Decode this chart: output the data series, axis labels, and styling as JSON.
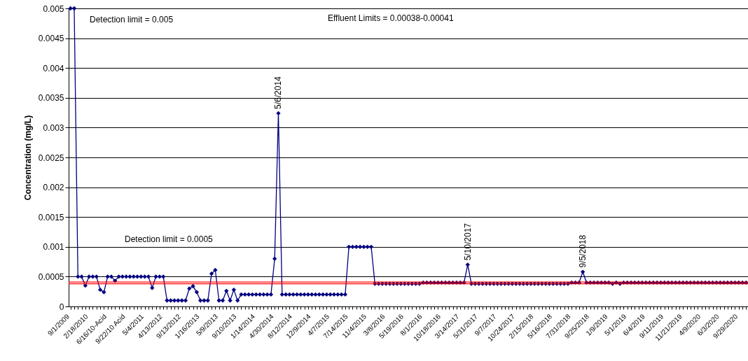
{
  "chart_data": {
    "type": "line",
    "ylabel": "Concentration (mg/L)",
    "categories": [
      "9/1/2009",
      null,
      null,
      null,
      null,
      "2/18/2010",
      null,
      null,
      null,
      null,
      "6/16/10-Acid",
      null,
      null,
      null,
      null,
      "9/22/10 Acid",
      null,
      null,
      null,
      null,
      "5/4/2011",
      null,
      null,
      null,
      null,
      "4/13/2012",
      null,
      null,
      null,
      null,
      "9/13/2012",
      null,
      null,
      null,
      null,
      "1/16/2013",
      null,
      null,
      null,
      null,
      "5/9/2013",
      null,
      null,
      null,
      null,
      "9/10/2013",
      null,
      null,
      null,
      null,
      "1/14/2014",
      null,
      null,
      null,
      null,
      "4/30/2014",
      null,
      null,
      null,
      null,
      "8/12/2014",
      null,
      null,
      null,
      null,
      "12/9/2014",
      null,
      null,
      null,
      null,
      "4/7/2015",
      null,
      null,
      null,
      null,
      "7/14/2015",
      null,
      null,
      null,
      null,
      "11/4/2015",
      null,
      null,
      null,
      null,
      "3/8/2016",
      null,
      null,
      null,
      null,
      "5/19/2016",
      null,
      null,
      null,
      null,
      "8/1/2016",
      null,
      null,
      null,
      null,
      "10/18/2016",
      null,
      null,
      null,
      null,
      "3/14/2017",
      null,
      null,
      null,
      null,
      "5/31/2017",
      null,
      null,
      null,
      null,
      "9/7/2017",
      null,
      null,
      null,
      null,
      "10/24/2017",
      null,
      null,
      null,
      null,
      "2/15/2018",
      null,
      null,
      null,
      null,
      "5/16/2018",
      null,
      null,
      null,
      null,
      "7/31/2018",
      null,
      null,
      null,
      null,
      "9/25/2018",
      null,
      null,
      null,
      null,
      "1/9/2019",
      null,
      null,
      null,
      null,
      "5/1/2019",
      null,
      null,
      null,
      null,
      "6/4/2019",
      null,
      null,
      null,
      null,
      "9/11/2019",
      null,
      null,
      null,
      null,
      "11/21/2019",
      null,
      null,
      null,
      null,
      "4/9/2020",
      null,
      null,
      null,
      null,
      "6/3/2020",
      null,
      null,
      null,
      null,
      "9/29/2020",
      null,
      null
    ],
    "series": [
      {
        "color": "#000080",
        "values": [
          0.005,
          0.005,
          0.0005,
          0.0005,
          0.00035,
          0.0005,
          0.0005,
          0.0005,
          0.00028,
          0.00024,
          0.0005,
          0.0005,
          0.00043,
          0.0005,
          0.0005,
          0.0005,
          0.0005,
          0.0005,
          0.0005,
          0.0005,
          0.0005,
          0.0005,
          0.00031,
          0.0005,
          0.0005,
          0.0005,
          0.0001,
          0.0001,
          0.0001,
          0.0001,
          0.0001,
          0.0001,
          0.0003,
          0.00034,
          0.00024,
          0.0001,
          0.0001,
          0.0001,
          0.00055,
          0.00061,
          0.0001,
          0.0001,
          0.00026,
          0.0001,
          0.00028,
          0.0001,
          0.0002,
          0.0002,
          0.0002,
          0.0002,
          0.0002,
          0.0002,
          0.0002,
          0.0002,
          0.0002,
          0.0008,
          0.00324,
          0.0002,
          0.0002,
          0.0002,
          0.0002,
          0.0002,
          0.0002,
          0.0002,
          0.0002,
          0.0002,
          0.0002,
          0.0002,
          0.0002,
          0.0002,
          0.0002,
          0.0002,
          0.0002,
          0.0002,
          0.0002,
          0.001,
          0.001,
          0.001,
          0.001,
          0.001,
          0.001,
          0.001,
          0.00038,
          0.00038,
          0.00038,
          0.00038,
          0.00038,
          0.00038,
          0.00038,
          0.00038,
          0.00038,
          0.00038,
          0.00038,
          0.00038,
          0.00038,
          0.0004,
          0.0004,
          0.0004,
          0.0004,
          0.0004,
          0.0004,
          0.0004,
          0.0004,
          0.0004,
          0.0004,
          0.0004,
          0.0004,
          0.0007,
          0.00038,
          0.00038,
          0.00038,
          0.00038,
          0.00038,
          0.00038,
          0.00038,
          0.00038,
          0.00038,
          0.00038,
          0.00038,
          0.00038,
          0.00038,
          0.00038,
          0.00038,
          0.00038,
          0.00038,
          0.00038,
          0.00038,
          0.00038,
          0.00038,
          0.00038,
          0.00038,
          0.00038,
          0.00038,
          0.00038,
          0.00038,
          0.0004,
          0.0004,
          0.0004,
          0.00058,
          0.0004,
          0.0004,
          0.0004,
          0.0004,
          0.0004,
          0.0004,
          0.0004,
          0.00038,
          0.0004,
          0.00038,
          0.0004,
          0.0004,
          0.0004,
          0.0004,
          0.0004,
          0.0004,
          0.0004,
          0.0004,
          0.0004,
          0.0004,
          0.0004,
          0.0004,
          0.0004,
          0.0004,
          0.0004,
          0.0004,
          0.0004,
          0.0004,
          0.0004,
          0.0004,
          0.0004,
          0.0004,
          0.0004,
          0.0004,
          0.0004,
          0.0004,
          0.0004,
          0.0004,
          0.0004,
          0.0004,
          0.0004,
          0.0004,
          0.0004,
          0.0004
        ]
      }
    ],
    "ylim": [
      0,
      0.005
    ],
    "yticks": [
      0,
      0.0005,
      0.001,
      0.0015,
      0.002,
      0.0025,
      0.003,
      0.0035,
      0.004,
      0.0045,
      0.005
    ],
    "grid": "y",
    "marker": "diamond",
    "line_style": "solid",
    "ref_lines": [
      {
        "axis": "y",
        "value": 0.00038,
        "color": "#ff0000"
      },
      {
        "axis": "y",
        "value": 0.00041,
        "color": "#ff0000"
      }
    ],
    "annotations": [
      "Detection limit = 0.005",
      "Effluent Limits = 0.00038-0.00041",
      "Detection limit = 0.0005",
      {
        "text": "5/6/2014",
        "y": 0.00324
      },
      {
        "text": "5/10/2017",
        "y": 0.0007
      },
      {
        "text": "9/5/2018",
        "y": 0.00058
      }
    ]
  }
}
